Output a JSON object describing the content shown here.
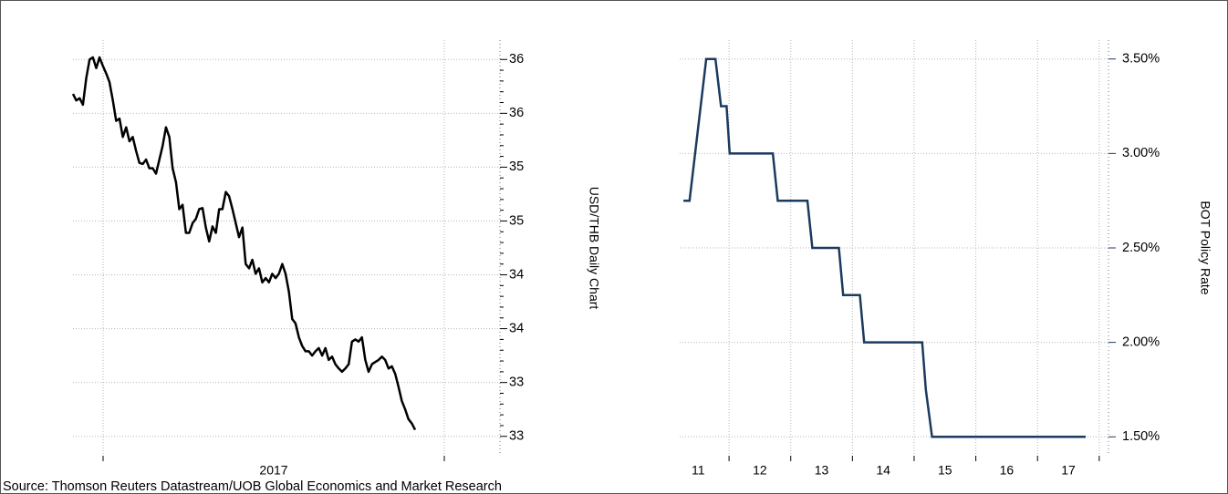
{
  "chart_data": [
    {
      "type": "line",
      "y_label": "USD/THB Daily Chart",
      "x_label": "2017",
      "color": "#000000",
      "grid": true,
      "y_axis_side": "right",
      "ylim": [
        32.32,
        36.18
      ],
      "yticks": [
        {
          "value": 36.0,
          "label": "36"
        },
        {
          "value": 35.5,
          "label": "36"
        },
        {
          "value": 35.0,
          "label": "35"
        },
        {
          "value": 34.5,
          "label": "35"
        },
        {
          "value": 34.0,
          "label": "34"
        },
        {
          "value": 33.5,
          "label": "34"
        },
        {
          "value": 33.0,
          "label": "33"
        },
        {
          "value": 32.5,
          "label": "33"
        }
      ],
      "values": [
        35.68,
        35.62,
        35.64,
        35.58,
        35.83,
        36.0,
        36.02,
        35.92,
        36.02,
        35.94,
        35.87,
        35.79,
        35.62,
        35.43,
        35.45,
        35.28,
        35.37,
        35.24,
        35.28,
        35.15,
        35.04,
        35.03,
        35.07,
        34.99,
        34.99,
        34.94,
        35.07,
        35.2,
        35.37,
        35.28,
        34.99,
        34.86,
        34.61,
        34.65,
        34.39,
        34.39,
        34.48,
        34.52,
        34.61,
        34.62,
        34.44,
        34.31,
        34.45,
        34.39,
        34.61,
        34.61,
        34.77,
        34.73,
        34.61,
        34.48,
        34.35,
        34.44,
        34.1,
        34.06,
        34.14,
        34.01,
        34.06,
        33.93,
        33.97,
        33.93,
        34.01,
        33.97,
        34.01,
        34.1,
        34.01,
        33.84,
        33.59,
        33.55,
        33.42,
        33.34,
        33.29,
        33.29,
        33.25,
        33.29,
        33.32,
        33.25,
        33.32,
        33.21,
        33.24,
        33.17,
        33.13,
        33.1,
        33.13,
        33.17,
        33.38,
        33.4,
        33.38,
        33.42,
        33.21,
        33.1,
        33.17,
        33.19,
        33.21,
        33.24,
        33.21,
        33.13,
        33.15,
        33.08,
        32.96,
        32.83,
        32.75,
        32.66,
        32.62,
        32.56
      ]
    },
    {
      "type": "step",
      "y_label": "BOT Policy Rate",
      "color": "#1b3a5f",
      "grid": true,
      "y_axis_side": "right",
      "ylim": [
        1.4,
        3.6
      ],
      "yticks": [
        {
          "value": 3.5,
          "label": "3.50%"
        },
        {
          "value": 3.0,
          "label": "3.00%"
        },
        {
          "value": 2.5,
          "label": "2.50%"
        },
        {
          "value": 2.0,
          "label": "2.00%"
        },
        {
          "value": 1.5,
          "label": "1.50%"
        }
      ],
      "xlim": [
        11.2,
        18.15
      ],
      "xticks": [
        {
          "value": 11.5,
          "label": "11"
        },
        {
          "value": 12.5,
          "label": "12"
        },
        {
          "value": 13.5,
          "label": "13"
        },
        {
          "value": 14.5,
          "label": "14"
        },
        {
          "value": 15.5,
          "label": "15"
        },
        {
          "value": 16.5,
          "label": "16"
        },
        {
          "value": 17.5,
          "label": "17"
        }
      ],
      "x": [
        11.26,
        11.36,
        11.63,
        11.78,
        11.87,
        11.96,
        12.01,
        12.71,
        12.79,
        13.27,
        13.35,
        13.78,
        13.85,
        14.12,
        14.19,
        15.13,
        15.19,
        15.29,
        17.78
      ],
      "values": [
        2.75,
        2.75,
        3.5,
        3.5,
        3.25,
        3.25,
        3.0,
        3.0,
        2.75,
        2.75,
        2.5,
        2.5,
        2.25,
        2.25,
        2.0,
        2.0,
        1.75,
        1.5,
        1.5
      ]
    }
  ],
  "source": "Source: Thomson Reuters Datastream/UOB Global Economics and Market Research"
}
